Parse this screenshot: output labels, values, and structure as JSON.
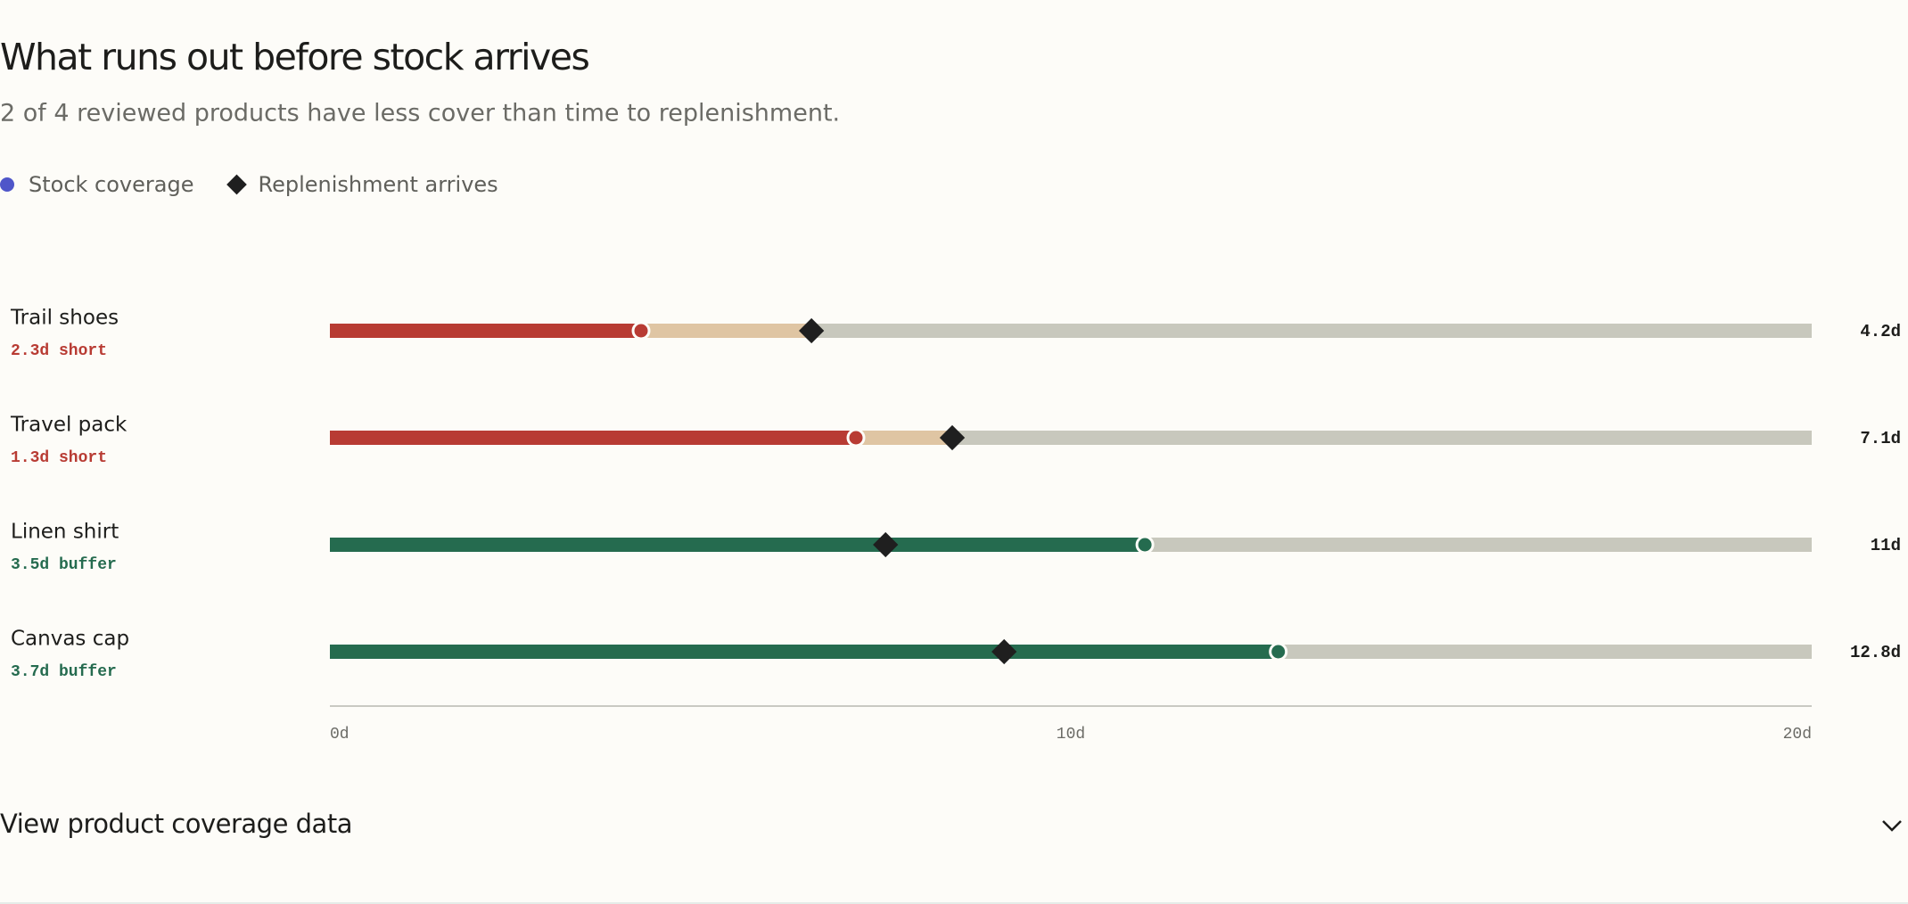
{
  "chart_data": {
    "type": "bar",
    "title": "What runs out before stock arrives",
    "subtitle": "2 of 4 reviewed products have less cover than time to replenishment.",
    "legend": [
      {
        "name": "Stock coverage",
        "color": "#4f56c9"
      },
      {
        "name": "Replenishment arrives",
        "color": "#1f1f1f"
      }
    ],
    "categories": [
      "Trail shoes",
      "Travel pack",
      "Linen shirt",
      "Canvas cap"
    ],
    "status_labels": [
      "2.3d short",
      "1.3d short",
      "3.5d buffer",
      "3.7d buffer"
    ],
    "coverage": [
      4.2,
      7.1,
      11,
      12.8
    ],
    "value_labels": [
      "4.2d",
      "7.1d",
      "11d",
      "12.8d"
    ],
    "replenishment": [
      6.5,
      8.4,
      7.5,
      9.1
    ],
    "colors": {
      "short": "#b83b33",
      "buffer": "#256b4f",
      "gap": "#dfc5a3",
      "track": "#c8c8bd"
    },
    "xlim": [
      0,
      20
    ],
    "xticks": [
      {
        "value": 0,
        "label": "0d"
      },
      {
        "value": 10,
        "label": "10d"
      },
      {
        "value": 20,
        "label": "20d"
      }
    ],
    "footer": "View product coverage data"
  }
}
